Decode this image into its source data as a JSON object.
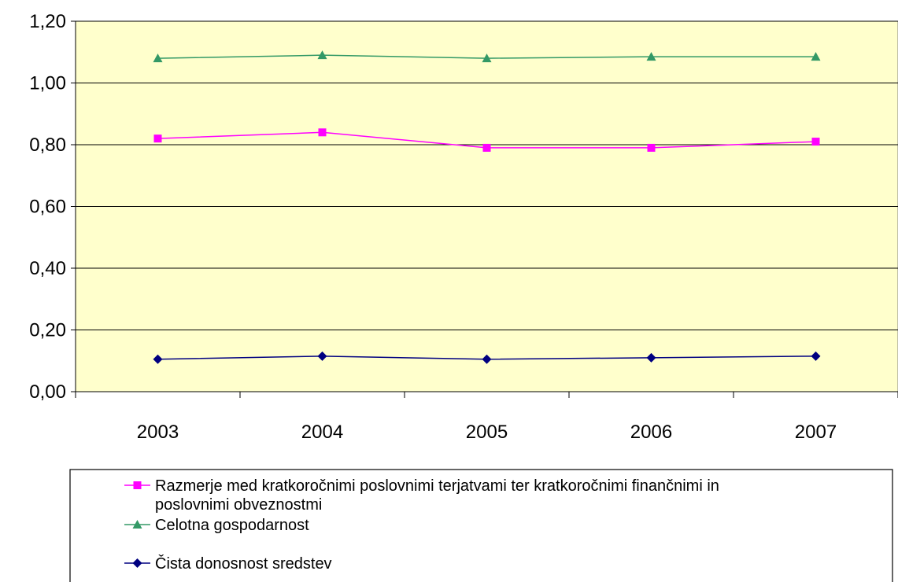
{
  "chart_data": {
    "type": "line",
    "categories": [
      "2003",
      "2004",
      "2005",
      "2006",
      "2007"
    ],
    "ylim": [
      0,
      1.2
    ],
    "y_ticks": [
      "0,00",
      "0,20",
      "0,40",
      "0,60",
      "0,80",
      "1,00",
      "1,20"
    ],
    "grid": true,
    "plot_background": "#FFFFCC",
    "legend_position": "bottom",
    "series": [
      {
        "name": "Razmerje med kratkoročnimi poslovnimi terjatvami ter kratkoročnimi finančnimi in poslovnimi obveznostmi",
        "name_lines": [
          "Razmerje med kratkoročnimi poslovnimi terjatvami ter kratkoročnimi finančnimi in",
          "poslovnimi obveznostmi"
        ],
        "marker": "square",
        "color": "#FF00FF",
        "values": [
          0.82,
          0.84,
          0.79,
          0.79,
          0.81
        ]
      },
      {
        "name": "Celotna gospodarnost",
        "name_lines": [
          "Celotna gospodarnost"
        ],
        "marker": "triangle",
        "color": "#339966",
        "values": [
          1.08,
          1.09,
          1.08,
          1.085,
          1.085
        ]
      },
      {
        "name": "Čista donosnost sredstev",
        "name_lines": [
          "Čista donosnost sredstev"
        ],
        "marker": "diamond",
        "color": "#000080",
        "values": [
          0.105,
          0.115,
          0.105,
          0.11,
          0.115
        ]
      }
    ]
  }
}
